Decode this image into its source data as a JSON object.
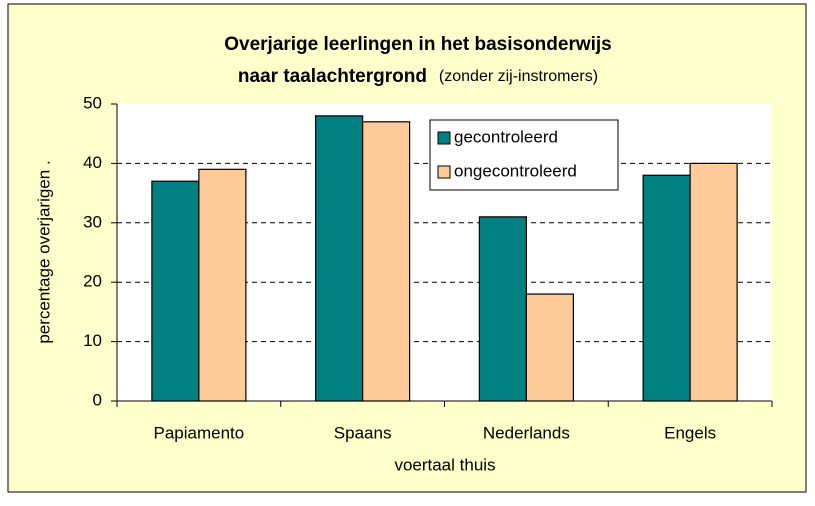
{
  "chart_data": {
    "type": "bar",
    "title": [
      "Overjarige leerlingen in het basisonderwijs",
      "naar taalachtergrond"
    ],
    "subtitle": "(zonder zij-instromers)",
    "x_label": "voertaal thuis",
    "y_label": "percentage overjarigen  .",
    "categories": [
      "Papiamento",
      "Spaans",
      "Nederlands",
      "Engels"
    ],
    "series": [
      {
        "name": "gecontroleerd",
        "color": "#008080",
        "values": [
          37,
          48,
          31,
          38
        ]
      },
      {
        "name": "ongecontroleerd",
        "color": "#ffcc99",
        "values": [
          39,
          47,
          18,
          40
        ]
      }
    ],
    "ylim": [
      0,
      50
    ],
    "yticks": [
      0,
      10,
      20,
      30,
      40,
      50
    ],
    "grid": true,
    "legend": "top-right"
  }
}
